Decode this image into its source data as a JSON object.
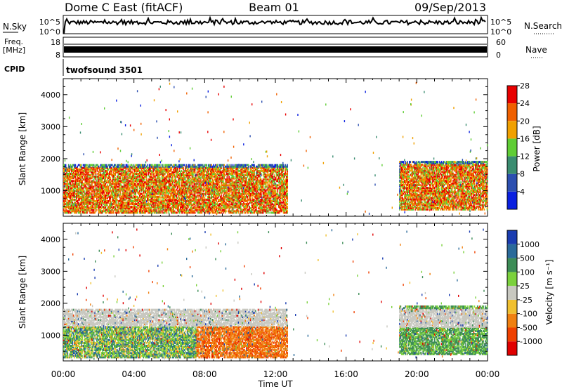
{
  "header": {
    "station": "Dome C East (fitACF)",
    "beam": "Beam 01",
    "date": "09/Sep/2013"
  },
  "top_panels": {
    "nsky_label": "N.Sky",
    "nsky_ticks": [
      "10^5",
      "10^0"
    ],
    "nsearch_label": "N.Search",
    "nsearch_ticks": [
      "10^5",
      "10^0"
    ],
    "freq_label": "Freq.",
    "freq_unit": "[MHz]",
    "freq_ticks": [
      "18",
      "8"
    ],
    "nave_label": "Nave",
    "nave_ticks": [
      "60",
      "0"
    ],
    "cpid_label": "CPID",
    "cpid_value": "twofsound 3501"
  },
  "chart_data": [
    {
      "type": "heatmap",
      "panel": "power",
      "ylabel": "Slant Range [km]",
      "xlabel": "",
      "xlim": [
        0,
        24
      ],
      "ylim": [
        200,
        4500
      ],
      "x_ticks": [
        "00:00",
        "04:00",
        "08:00",
        "12:00",
        "16:00",
        "20:00",
        "00:00"
      ],
      "y_ticks": [
        "1000",
        "2000",
        "3000",
        "4000"
      ],
      "colorbar": {
        "label": "Power [dB]",
        "tick_labels": [
          "4",
          "8",
          "12",
          "16",
          "20",
          "24",
          "28"
        ],
        "colors": [
          "#0a20e0",
          "#2c4fb0",
          "#3a8c70",
          "#5fcd35",
          "#f0a000",
          "#f06000",
          "#e80000"
        ]
      },
      "regions": [
        {
          "t": [
            0,
            12.7
          ],
          "range": [
            300,
            1800
          ],
          "level": "high"
        },
        {
          "t": [
            12.7,
            19
          ],
          "range": [
            300,
            2200
          ],
          "level": "sparse"
        },
        {
          "t": [
            19,
            24
          ],
          "range": [
            400,
            1900
          ],
          "level": "high"
        }
      ]
    },
    {
      "type": "heatmap",
      "panel": "velocity",
      "ylabel": "Slant Range [km]",
      "xlabel": "Time UT",
      "xlim": [
        0,
        24
      ],
      "ylim": [
        200,
        4500
      ],
      "x_ticks": [
        "00:00",
        "04:00",
        "08:00",
        "12:00",
        "16:00",
        "20:00",
        "00:00"
      ],
      "y_ticks": [
        "1000",
        "2000",
        "3000",
        "4000"
      ],
      "colorbar": {
        "label": "Velocity [m s⁻¹]",
        "tick_labels": [
          "1000",
          "500",
          "100",
          "25",
          "-25",
          "-100",
          "-500",
          "-1000"
        ],
        "colors": [
          "#1a3cb0",
          "#2a6a9a",
          "#3c8c56",
          "#7bd13c",
          "#c8c8c0",
          "#f0c030",
          "#f08010",
          "#f04000",
          "#e00000"
        ]
      },
      "regions": [
        {
          "t": [
            0,
            12.7
          ],
          "range": [
            300,
            1800
          ],
          "dominant": "mixed green / orange"
        },
        {
          "t": [
            19,
            24
          ],
          "range": [
            400,
            1900
          ],
          "dominant": "green"
        }
      ]
    }
  ]
}
